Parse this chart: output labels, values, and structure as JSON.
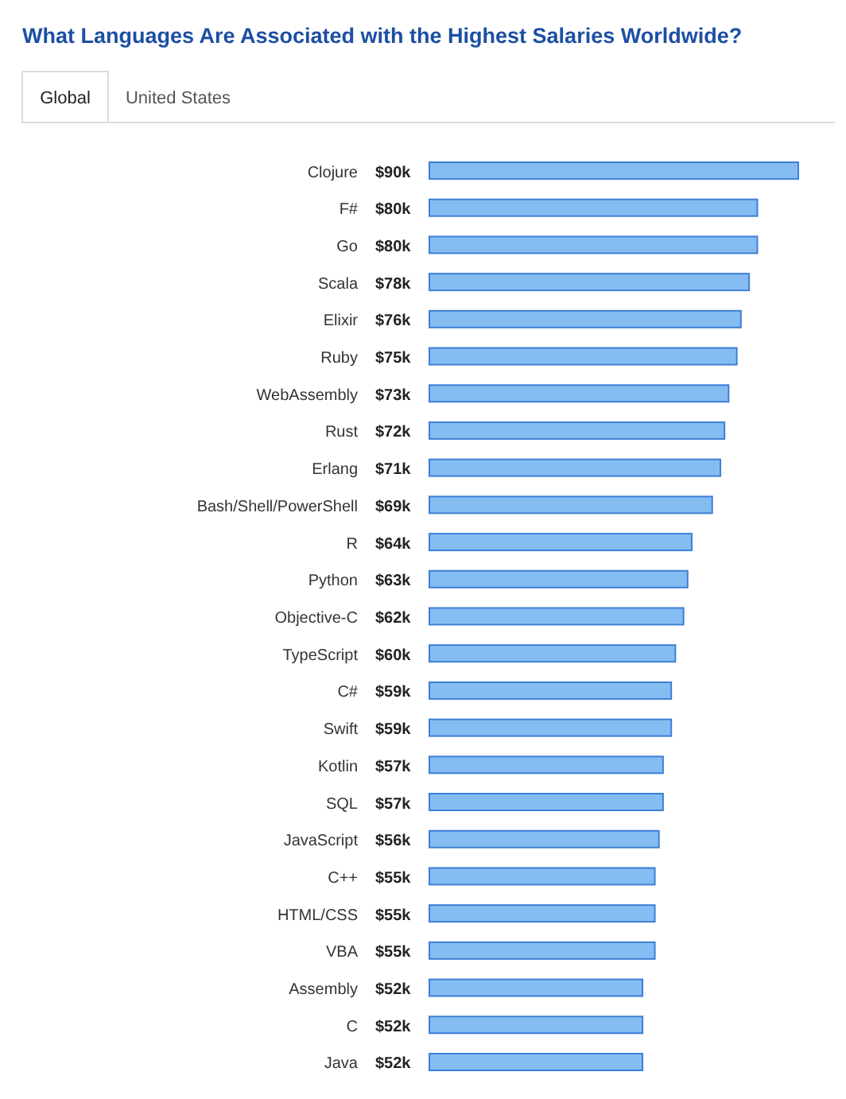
{
  "chart_data": {
    "type": "bar",
    "orientation": "horizontal",
    "title": "What Languages Are Associated with the Highest Salaries Worldwide?",
    "annotations": [
      "Global",
      "United States"
    ],
    "categories": [
      "Clojure",
      "F#",
      "Go",
      "Scala",
      "Elixir",
      "Ruby",
      "WebAssembly",
      "Rust",
      "Erlang",
      "Bash/Shell/PowerShell",
      "R",
      "Python",
      "Objective-C",
      "TypeScript",
      "C#",
      "Swift",
      "Kotlin",
      "SQL",
      "JavaScript",
      "C++",
      "HTML/CSS",
      "VBA",
      "Assembly",
      "C",
      "Java"
    ],
    "values": [
      90,
      80,
      80,
      78,
      76,
      75,
      73,
      72,
      71,
      69,
      64,
      63,
      62,
      60,
      59,
      59,
      57,
      57,
      56,
      55,
      55,
      55,
      52,
      52,
      52
    ],
    "value_labels": [
      "$90k",
      "$80k",
      "$80k",
      "$78k",
      "$76k",
      "$75k",
      "$73k",
      "$72k",
      "$71k",
      "$69k",
      "$64k",
      "$63k",
      "$62k",
      "$60k",
      "$59k",
      "$59k",
      "$57k",
      "$57k",
      "$56k",
      "$55k",
      "$55k",
      "$55k",
      "$52k",
      "$52k",
      "$52k"
    ],
    "color": "#85bdf2"
  }
}
